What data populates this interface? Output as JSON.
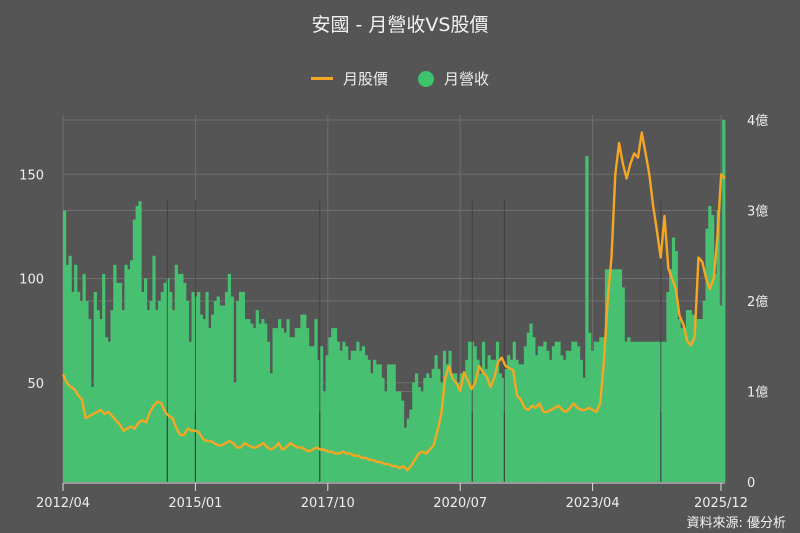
{
  "title": "安國 - 月營收VS股價",
  "legend": {
    "line_label": "月股價",
    "bar_label": "月營收"
  },
  "source": "資料來源: 優分析",
  "colors": {
    "background": "#555555",
    "bar": "#48c072",
    "line": "#f5a623",
    "grid": "#6e6e6e",
    "text": "#eeeeee"
  },
  "chart_data": {
    "type": "bar+line",
    "title": "安國 - 月營收VS股價",
    "x_ticks": [
      "2012/04",
      "2015/01",
      "2017/10",
      "2020/07",
      "2023/04",
      "2025/12"
    ],
    "left_axis": {
      "label": "月股價",
      "ticks": [
        "50",
        "100",
        "150"
      ],
      "range": [
        0,
        175
      ]
    },
    "right_axis": {
      "label": "月營收",
      "ticks": [
        "0",
        "1億",
        "2億",
        "3億",
        "4億"
      ],
      "range": [
        0,
        4.05
      ]
    },
    "series": [
      {
        "name": "月營收",
        "type": "bar",
        "axis": "right",
        "unit": "億",
        "start": "2012/04",
        "values": [
          3.0,
          2.4,
          2.5,
          2.1,
          2.4,
          2.1,
          2.0,
          2.3,
          2.0,
          1.8,
          1.05,
          2.1,
          1.9,
          1.8,
          2.3,
          1.6,
          1.55,
          1.9,
          2.4,
          2.2,
          2.2,
          1.9,
          2.4,
          2.35,
          2.45,
          2.9,
          3.05,
          3.1,
          2.1,
          2.25,
          1.9,
          2.0,
          2.5,
          1.9,
          2.0,
          2.1,
          2.2,
          2.25,
          2.1,
          1.9,
          2.4,
          2.3,
          2.3,
          2.2,
          2.0,
          1.55,
          2.1,
          2.05,
          2.1,
          1.85,
          1.8,
          2.1,
          1.7,
          1.85,
          2.0,
          2.05,
          1.95,
          1.95,
          2.1,
          2.3,
          2.05,
          1.1,
          2.0,
          2.1,
          2.1,
          1.8,
          1.8,
          1.75,
          1.7,
          1.9,
          1.75,
          1.8,
          1.75,
          1.55,
          1.2,
          1.7,
          1.7,
          1.8,
          1.7,
          1.65,
          1.8,
          1.6,
          1.6,
          1.7,
          1.7,
          1.85,
          1.85,
          1.7,
          1.5,
          1.5,
          1.8,
          1.35,
          1.5,
          1.0,
          1.4,
          1.6,
          1.7,
          1.7,
          1.55,
          1.45,
          1.55,
          1.5,
          1.35,
          1.45,
          1.45,
          1.55,
          1.45,
          1.5,
          1.4,
          1.35,
          1.2,
          1.35,
          1.3,
          1.3,
          1.15,
          1.0,
          1.3,
          1.3,
          1.3,
          1.0,
          1.0,
          0.9,
          0.6,
          0.7,
          0.8,
          1.1,
          1.2,
          1.05,
          1.0,
          1.15,
          1.2,
          1.15,
          1.25,
          1.4,
          1.25,
          1.1,
          1.45,
          1.3,
          1.45,
          1.2,
          1.2,
          1.1,
          1.2,
          1.2,
          1.35,
          1.55,
          1.55,
          1.5,
          1.35,
          1.2,
          1.55,
          1.25,
          1.4,
          1.35,
          1.35,
          1.55,
          1.2,
          1.15,
          1.25,
          1.4,
          1.35,
          1.55,
          1.35,
          1.3,
          1.3,
          1.5,
          1.65,
          1.75,
          1.6,
          1.4,
          1.5,
          1.5,
          1.55,
          1.45,
          1.35,
          1.5,
          1.55,
          1.55,
          1.4,
          1.35,
          1.45,
          1.45,
          1.55,
          1.55,
          1.5,
          1.35,
          1.15,
          3.6,
          1.65,
          1.45,
          1.55,
          1.55,
          1.6,
          1.6,
          2.35,
          2.35,
          2.35,
          2.35,
          2.35,
          2.35,
          2.15,
          1.55,
          1.6,
          1.55,
          1.55,
          1.55,
          1.55,
          1.55,
          1.55,
          1.55,
          1.55,
          1.55,
          1.55,
          1.55,
          1.55,
          1.55,
          2.1,
          2.35,
          2.7,
          2.55,
          1.8,
          1.7,
          1.7,
          1.9,
          1.9,
          1.85,
          1.8,
          1.8,
          1.8,
          2.0,
          2.8,
          3.05,
          2.95,
          2.3,
          3.0,
          1.95,
          4.0
        ],
        "note": "bar values approximated in 億 reading right axis (0–4億)"
      },
      {
        "name": "月股價",
        "type": "line",
        "axis": "left",
        "unit": "TWD",
        "start": "2012/04",
        "values": [
          54,
          50,
          48,
          47,
          44,
          42,
          33,
          34,
          35,
          36,
          37,
          35,
          36,
          34,
          32,
          30,
          27,
          28,
          29,
          28,
          31,
          32,
          31,
          36,
          39,
          41,
          40,
          36,
          34,
          33,
          28,
          25,
          25,
          28,
          27,
          27,
          26,
          23,
          22,
          22,
          21,
          20,
          20,
          21,
          22,
          21,
          19,
          19,
          21,
          20,
          19,
          19,
          20,
          21,
          19,
          18,
          19,
          21,
          18,
          19,
          21,
          20,
          19,
          19,
          18,
          17,
          18,
          19,
          18,
          18,
          17,
          17,
          16,
          16,
          17,
          16,
          16,
          15,
          15,
          14,
          14,
          13,
          13,
          12,
          12,
          11,
          11,
          10,
          10,
          9,
          10,
          8,
          10,
          13,
          16,
          17,
          16,
          18,
          20,
          27,
          35,
          52,
          58,
          52,
          50,
          46,
          55,
          51,
          47,
          50,
          58,
          55,
          53,
          48,
          52,
          60,
          62,
          58,
          57,
          56,
          44,
          42,
          38,
          37,
          39,
          38,
          40,
          36,
          36,
          37,
          38,
          39,
          37,
          36,
          38,
          40,
          38,
          37,
          37,
          38,
          37,
          36,
          40,
          60,
          90,
          110,
          150,
          165,
          155,
          148,
          155,
          160,
          158,
          170,
          160,
          150,
          135,
          123,
          110,
          130,
          105,
          100,
          95,
          82,
          78,
          70,
          68,
          72,
          110,
          108,
          100,
          95,
          100,
          120,
          150,
          148
        ]
      }
    ],
    "vertical_markers_x": [
      "2014/06",
      "2015/01",
      "2017/08",
      "2020/10",
      "2021/06",
      "2024/09"
    ],
    "grid": true,
    "legend_position": "top"
  }
}
